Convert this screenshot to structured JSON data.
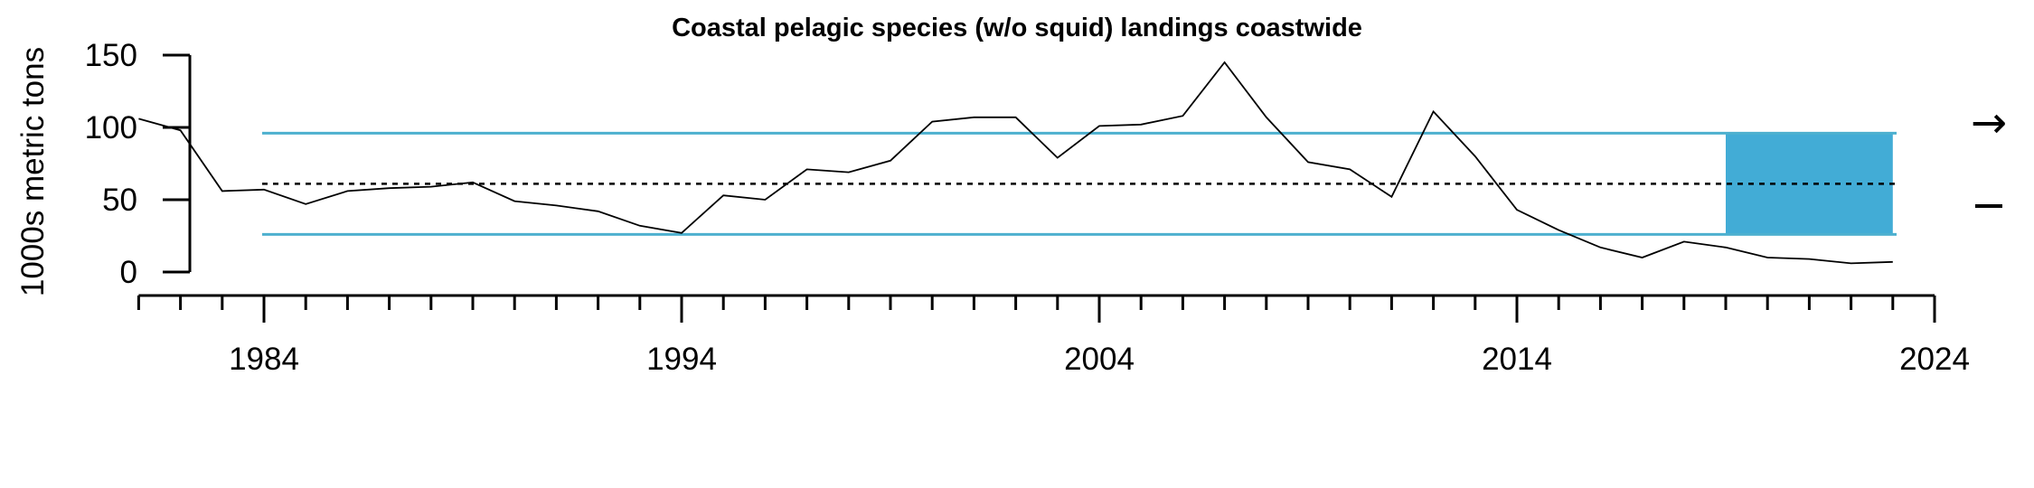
{
  "chart_data": {
    "type": "line",
    "title": "Coastal pelagic species (w/o squid) landings coastwide",
    "xlabel": "",
    "ylabel": "1000s metric tons",
    "xlim": [
      1981,
      2024
    ],
    "ylim": [
      0,
      150
    ],
    "x_ticks": [
      1984,
      1994,
      2004,
      2014,
      2024
    ],
    "y_ticks": [
      0,
      50,
      100,
      150
    ],
    "series": [
      {
        "x": [
          1981,
          1982,
          1983,
          1984,
          1985,
          1986,
          1987,
          1988,
          1989,
          1990,
          1991,
          1992,
          1993,
          1994,
          1995,
          1996,
          1997,
          1998,
          1999,
          2000,
          2001,
          2002,
          2003,
          2004,
          2005,
          2006,
          2007,
          2008,
          2009,
          2010,
          2011,
          2012,
          2013,
          2014,
          2015,
          2016,
          2017,
          2018,
          2019,
          2020,
          2021,
          2022,
          2023
        ],
        "values": [
          106,
          98,
          56,
          57,
          47,
          56,
          58,
          59,
          62,
          49,
          46,
          42,
          32,
          27,
          53,
          50,
          71,
          69,
          77,
          104,
          107,
          107,
          79,
          101,
          102,
          108,
          145,
          107,
          76,
          71,
          52,
          111,
          80,
          43,
          29,
          17,
          10,
          21,
          17,
          10,
          9,
          6,
          7
        ]
      }
    ],
    "mean": 61,
    "sd_upper": 96,
    "sd_lower": 26,
    "recent_window": [
      2019,
      2023
    ],
    "grid": false,
    "trend_symbol": "→",
    "mean_symbol": "−",
    "colors": {
      "series": "#000000",
      "sd_lines": "#4db0cf",
      "recent_fill": "#42acd6",
      "mean_line": "#000000"
    }
  }
}
